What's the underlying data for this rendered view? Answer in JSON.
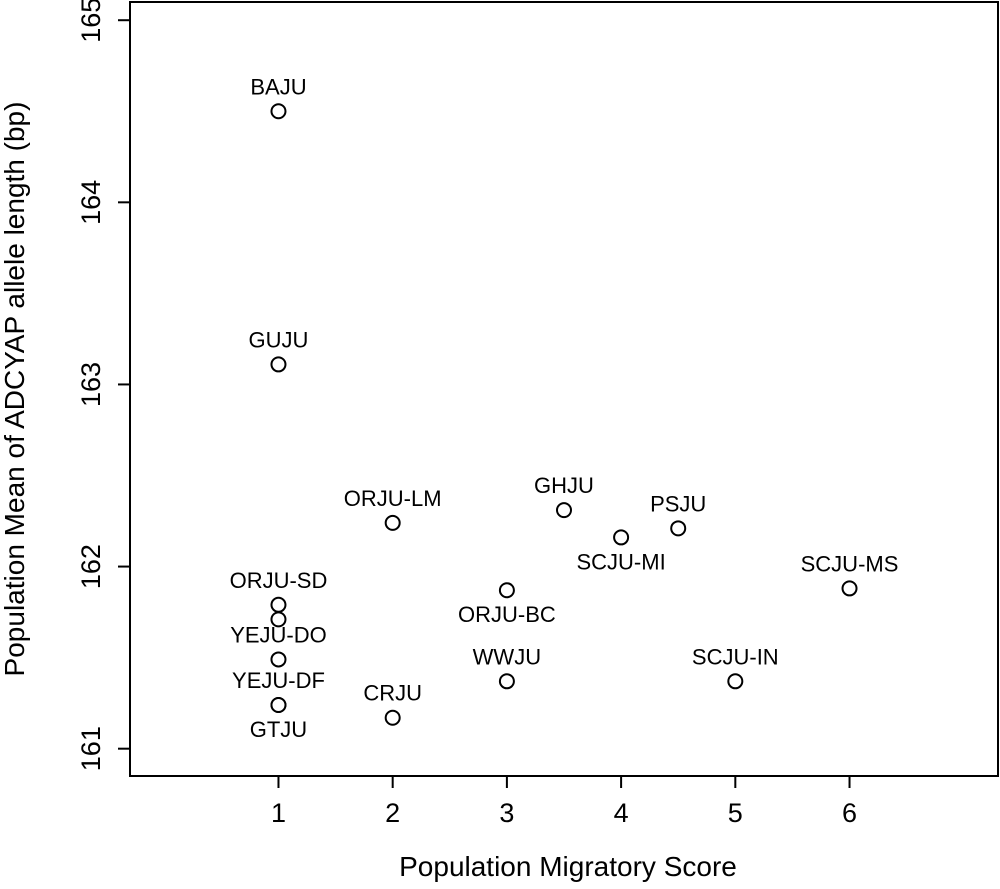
{
  "chart_data": {
    "type": "scatter",
    "title": "",
    "xlabel": "Population Migratory Score",
    "ylabel": "Population Mean of ADCYAP allele length (bp)",
    "xlim": [
      -0.3,
      7.3
    ],
    "ylim": [
      160.85,
      165.1
    ],
    "xticks": [
      1,
      2,
      3,
      4,
      5,
      6
    ],
    "yticks": [
      161,
      162,
      163,
      164,
      165
    ],
    "grid": false,
    "legend": "none",
    "marker": "open-circle",
    "points": [
      {
        "label": "BAJU",
        "x": 1,
        "y": 164.5,
        "label_pos": "above"
      },
      {
        "label": "GUJU",
        "x": 1,
        "y": 163.11,
        "label_pos": "above"
      },
      {
        "label": "ORJU-LM",
        "x": 2,
        "y": 162.24,
        "label_pos": "above"
      },
      {
        "label": "GHJU",
        "x": 3.5,
        "y": 162.31,
        "label_pos": "above"
      },
      {
        "label": "PSJU",
        "x": 4.5,
        "y": 162.21,
        "label_pos": "above"
      },
      {
        "label": "SCJU-MI",
        "x": 4,
        "y": 162.16,
        "label_pos": "below"
      },
      {
        "label": "SCJU-MS",
        "x": 6,
        "y": 161.88,
        "label_pos": "above"
      },
      {
        "label": "ORJU-SD",
        "x": 1,
        "y": 161.79,
        "label_pos": "above"
      },
      {
        "label": "",
        "x": 1,
        "y": 161.71,
        "label_pos": "none"
      },
      {
        "label": "ORJU-BC",
        "x": 3,
        "y": 161.87,
        "label_pos": "below"
      },
      {
        "label": "YEJU-DO",
        "x": 1,
        "y": 161.49,
        "label_pos": "above"
      },
      {
        "label": "WWJU",
        "x": 3,
        "y": 161.37,
        "label_pos": "above"
      },
      {
        "label": "SCJU-IN",
        "x": 5,
        "y": 161.37,
        "label_pos": "above"
      },
      {
        "label": "YEJU-DF",
        "x": 1,
        "y": 161.24,
        "label_pos": "above"
      },
      {
        "label": "GTJU",
        "x": 1,
        "y": 161.24,
        "label_pos": "below"
      },
      {
        "label": "CRJU",
        "x": 2,
        "y": 161.17,
        "label_pos": "above"
      }
    ]
  }
}
